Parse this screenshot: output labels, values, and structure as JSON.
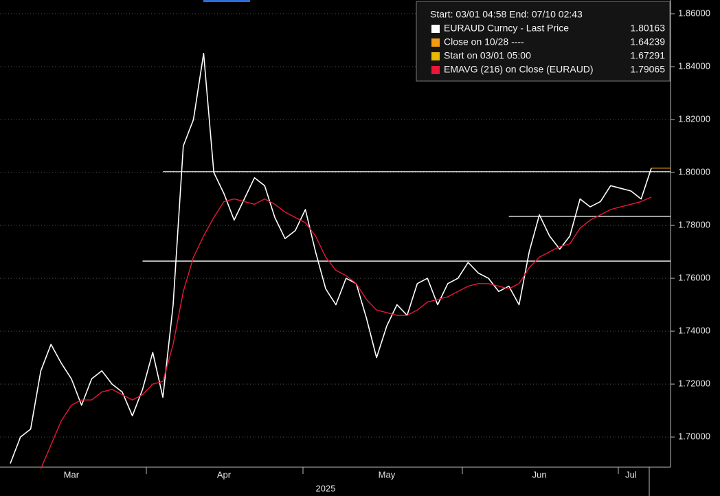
{
  "chart_data": {
    "type": "line",
    "legend_title": "Start: 03/01 04:58 End: 07/10 02:43",
    "x_label": "2025",
    "categories": [
      null,
      null,
      null,
      null,
      null,
      null,
      "Mar",
      null,
      null,
      null,
      null,
      null,
      null,
      null,
      null,
      null,
      null,
      null,
      null,
      null,
      null,
      "Apr",
      null,
      null,
      null,
      null,
      null,
      null,
      null,
      null,
      null,
      null,
      null,
      null,
      null,
      null,
      null,
      "May",
      null,
      null,
      null,
      null,
      null,
      null,
      null,
      null,
      null,
      null,
      null,
      null,
      null,
      null,
      "Jun",
      null,
      null,
      null,
      null,
      null,
      null,
      null,
      null,
      "Jul",
      null,
      null
    ],
    "series": [
      {
        "name": "EURAUD Curncy - Last Price",
        "color": "#ffffff",
        "last": 1.80163,
        "values": [
          1.69,
          1.7,
          1.703,
          1.725,
          1.735,
          1.728,
          1.722,
          1.712,
          1.722,
          1.725,
          1.72,
          1.717,
          1.708,
          1.718,
          1.732,
          1.715,
          1.75,
          1.81,
          1.82,
          1.845,
          1.8,
          1.792,
          1.782,
          1.79,
          1.798,
          1.795,
          1.783,
          1.775,
          1.778,
          1.786,
          1.77,
          1.756,
          1.75,
          1.76,
          1.758,
          1.745,
          1.73,
          1.742,
          1.75,
          1.746,
          1.758,
          1.76,
          1.75,
          1.758,
          1.76,
          1.766,
          1.762,
          1.76,
          1.755,
          1.757,
          1.75,
          1.77,
          1.784,
          1.776,
          1.771,
          1.776,
          1.79,
          1.787,
          1.789,
          1.795,
          1.794,
          1.793,
          1.79,
          1.8016
        ]
      },
      {
        "name": "Close on 10/28 ----",
        "color": "#f39c12",
        "last": 1.64239
      },
      {
        "name": "Start on 03/01 05:00",
        "color": "#e6b800",
        "last": 1.67291
      },
      {
        "name": "EMAVG (216)  on Close (EURAUD)",
        "color": "#e8173a",
        "last": 1.79065,
        "values": [
          null,
          null,
          null,
          1.688,
          1.697,
          1.706,
          1.712,
          1.714,
          1.714,
          1.717,
          1.718,
          1.716,
          1.714,
          1.716,
          1.72,
          1.721,
          1.735,
          1.755,
          1.768,
          1.776,
          1.783,
          1.789,
          1.79,
          1.789,
          1.788,
          1.79,
          1.788,
          1.785,
          1.783,
          1.781,
          1.776,
          1.768,
          1.763,
          1.761,
          1.758,
          1.752,
          1.748,
          1.747,
          1.746,
          1.746,
          1.748,
          1.751,
          1.752,
          1.753,
          1.755,
          1.757,
          1.758,
          1.758,
          1.757,
          1.756,
          1.758,
          1.764,
          1.768,
          1.77,
          1.772,
          1.773,
          1.779,
          1.782,
          1.784,
          1.786,
          1.787,
          1.788,
          1.789,
          1.7907
        ]
      }
    ],
    "hlines": [
      {
        "value": 1.8003,
        "from": 15
      },
      {
        "value": 1.7834,
        "from": 49
      },
      {
        "value": 1.7665,
        "from": 13
      }
    ],
    "ylim": [
      1.6886,
      1.8652
    ],
    "yticks": [
      {
        "value": 1.7,
        "label": "1.70000"
      },
      {
        "value": 1.72,
        "label": "1.72000"
      },
      {
        "value": 1.74,
        "label": "1.74000"
      },
      {
        "value": 1.76,
        "label": "1.76000"
      },
      {
        "value": 1.78,
        "label": "1.78000"
      },
      {
        "value": 1.8,
        "label": "1.80000"
      },
      {
        "value": 1.82,
        "label": "1.82000"
      },
      {
        "value": 1.84,
        "label": "1.84000"
      },
      {
        "value": 1.86,
        "label": "1.86000"
      }
    ],
    "grid": true
  }
}
